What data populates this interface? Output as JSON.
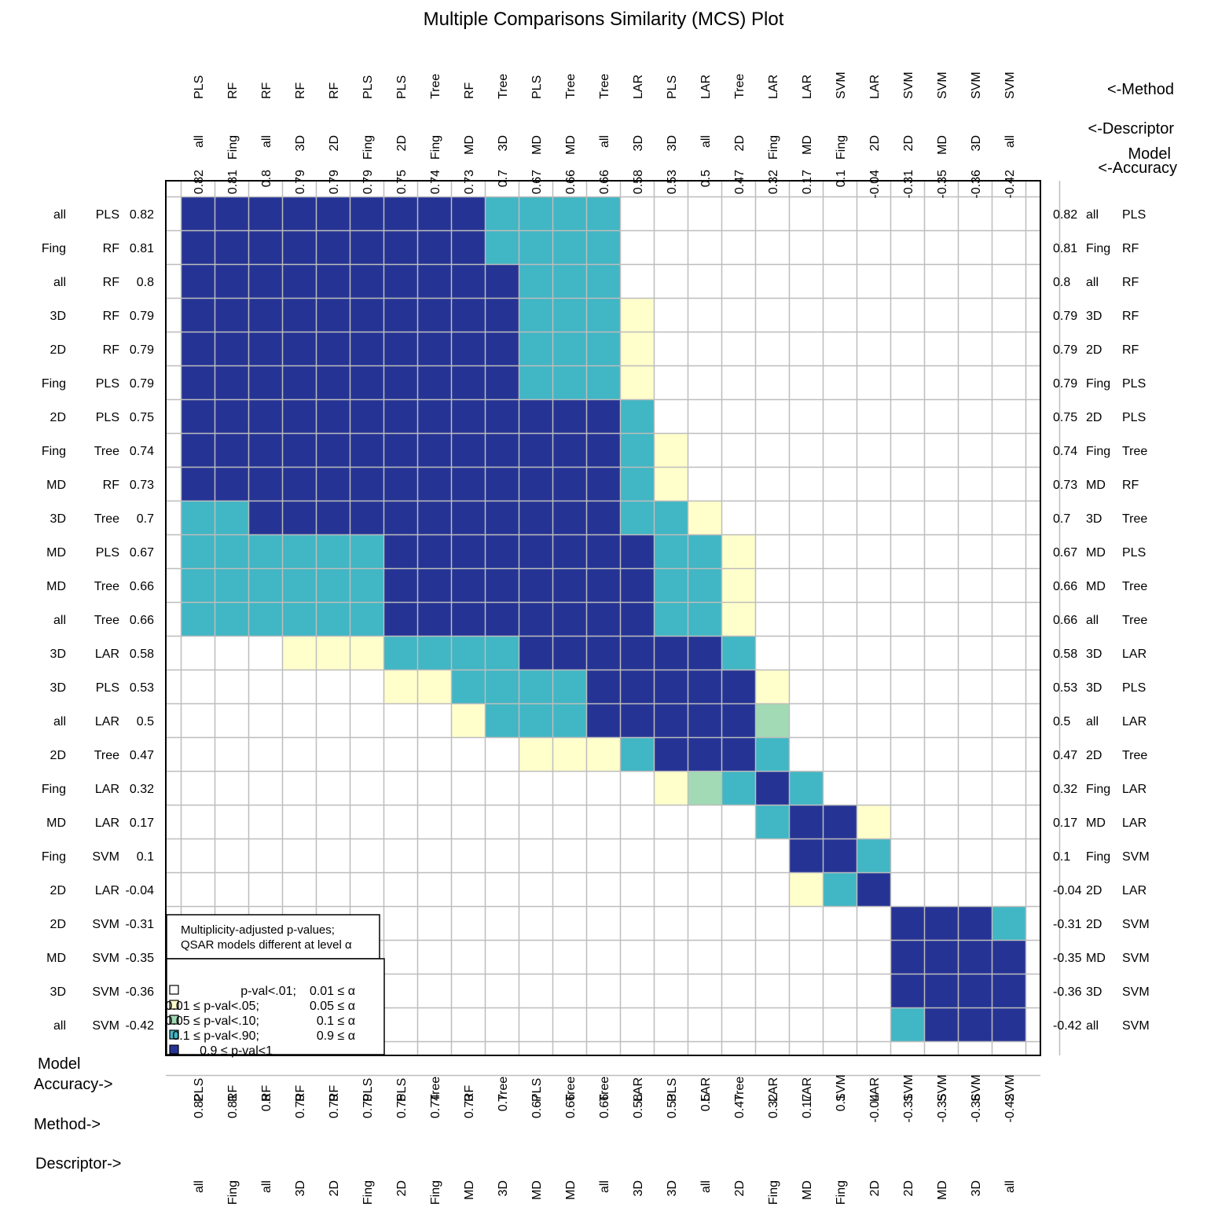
{
  "chart_data": {
    "type": "heatmap",
    "title": "Multiple Comparisons Similarity (MCS) Plot",
    "header_labels": {
      "method": "<-Method",
      "descriptor": "<-Descriptor",
      "model": "Model",
      "accuracy": "<-Accuracy"
    },
    "bottom_labels": {
      "model": "Model",
      "accuracy": "Accuracy->",
      "method": "Method->",
      "descriptor": "Descriptor->"
    },
    "models": [
      {
        "descriptor": "all",
        "method": "PLS",
        "accuracy": "0.82"
      },
      {
        "descriptor": "Fing",
        "method": "RF",
        "accuracy": "0.81"
      },
      {
        "descriptor": "all",
        "method": "RF",
        "accuracy": "0.8"
      },
      {
        "descriptor": "3D",
        "method": "RF",
        "accuracy": "0.79"
      },
      {
        "descriptor": "2D",
        "method": "RF",
        "accuracy": "0.79"
      },
      {
        "descriptor": "Fing",
        "method": "PLS",
        "accuracy": "0.79"
      },
      {
        "descriptor": "2D",
        "method": "PLS",
        "accuracy": "0.75"
      },
      {
        "descriptor": "Fing",
        "method": "Tree",
        "accuracy": "0.74"
      },
      {
        "descriptor": "MD",
        "method": "RF",
        "accuracy": "0.73"
      },
      {
        "descriptor": "3D",
        "method": "Tree",
        "accuracy": "0.7"
      },
      {
        "descriptor": "MD",
        "method": "PLS",
        "accuracy": "0.67"
      },
      {
        "descriptor": "MD",
        "method": "Tree",
        "accuracy": "0.66"
      },
      {
        "descriptor": "all",
        "method": "Tree",
        "accuracy": "0.66"
      },
      {
        "descriptor": "3D",
        "method": "LAR",
        "accuracy": "0.58"
      },
      {
        "descriptor": "3D",
        "method": "PLS",
        "accuracy": "0.53"
      },
      {
        "descriptor": "all",
        "method": "LAR",
        "accuracy": "0.5"
      },
      {
        "descriptor": "2D",
        "method": "Tree",
        "accuracy": "0.47"
      },
      {
        "descriptor": "Fing",
        "method": "LAR",
        "accuracy": "0.32"
      },
      {
        "descriptor": "MD",
        "method": "LAR",
        "accuracy": "0.17"
      },
      {
        "descriptor": "Fing",
        "method": "SVM",
        "accuracy": "0.1"
      },
      {
        "descriptor": "2D",
        "method": "LAR",
        "accuracy": "-0.04"
      },
      {
        "descriptor": "2D",
        "method": "SVM",
        "accuracy": "-0.31"
      },
      {
        "descriptor": "MD",
        "method": "SVM",
        "accuracy": "-0.35"
      },
      {
        "descriptor": "3D",
        "method": "SVM",
        "accuracy": "-0.36"
      },
      {
        "descriptor": "all",
        "method": "SVM",
        "accuracy": "-0.42"
      }
    ],
    "levels": [
      {
        "name": "p-val<.01; 0.01 ≤ α",
        "color": "#ffffff"
      },
      {
        "name": "0.01 ≤ p-val<.05; 0.05 ≤ α",
        "color": "#ffffcc"
      },
      {
        "name": "0.05 ≤ p-val<.10; 0.1 ≤ α",
        "color": "#a1dab4"
      },
      {
        "name": "0.1 ≤ p-val<.90; 0.9 ≤ α",
        "color": "#41b6c4"
      },
      {
        "name": "0.9 ≤ p-val<1",
        "color": "#253494"
      }
    ],
    "matrix": [
      "4444444443333000000000000",
      "4444444443333000000000000",
      "4444444444333000000000000",
      "4444444444333100000000000",
      "4444444444333100000000000",
      "4444444444333100000000000",
      "4444444444444300000000000",
      "4444444444444310000000000",
      "4444444444444310000000000",
      "3344444444444331000000000",
      "3333334444444433100000000",
      "3333334444444433100000000",
      "3333334444444433100000000",
      "0001113333444444300000000",
      "0000001133334444410000000",
      "0000000013334444420000000",
      "0000000000111344430000000",
      "0000000000000012343000000",
      "0000000000000000034410000",
      "0000000000000000004430000",
      "0000000000000000001340000",
      "0000000000000000000004443",
      "0000000000000000000004444",
      "0000000000000000000004444",
      "0000000000000000000003444"
    ],
    "legend": {
      "title_line1": "Multiplicity-adjusted p-values;",
      "title_line2": "QSAR models different at level α",
      "entries": [
        {
          "left": "p-val<.01;",
          "right": "0.01 ≤ α"
        },
        {
          "left": "0.01 ≤ p-val<.05;",
          "right": "0.05 ≤ α"
        },
        {
          "left": "0.05 ≤ p-val<.10;",
          "right": "0.1 ≤ α"
        },
        {
          "left": "0.1 ≤ p-val<.90;",
          "right": "0.9 ≤ α"
        },
        {
          "left": "0.9 ≤ p-val<1",
          "right": ""
        }
      ]
    },
    "grid": true
  }
}
